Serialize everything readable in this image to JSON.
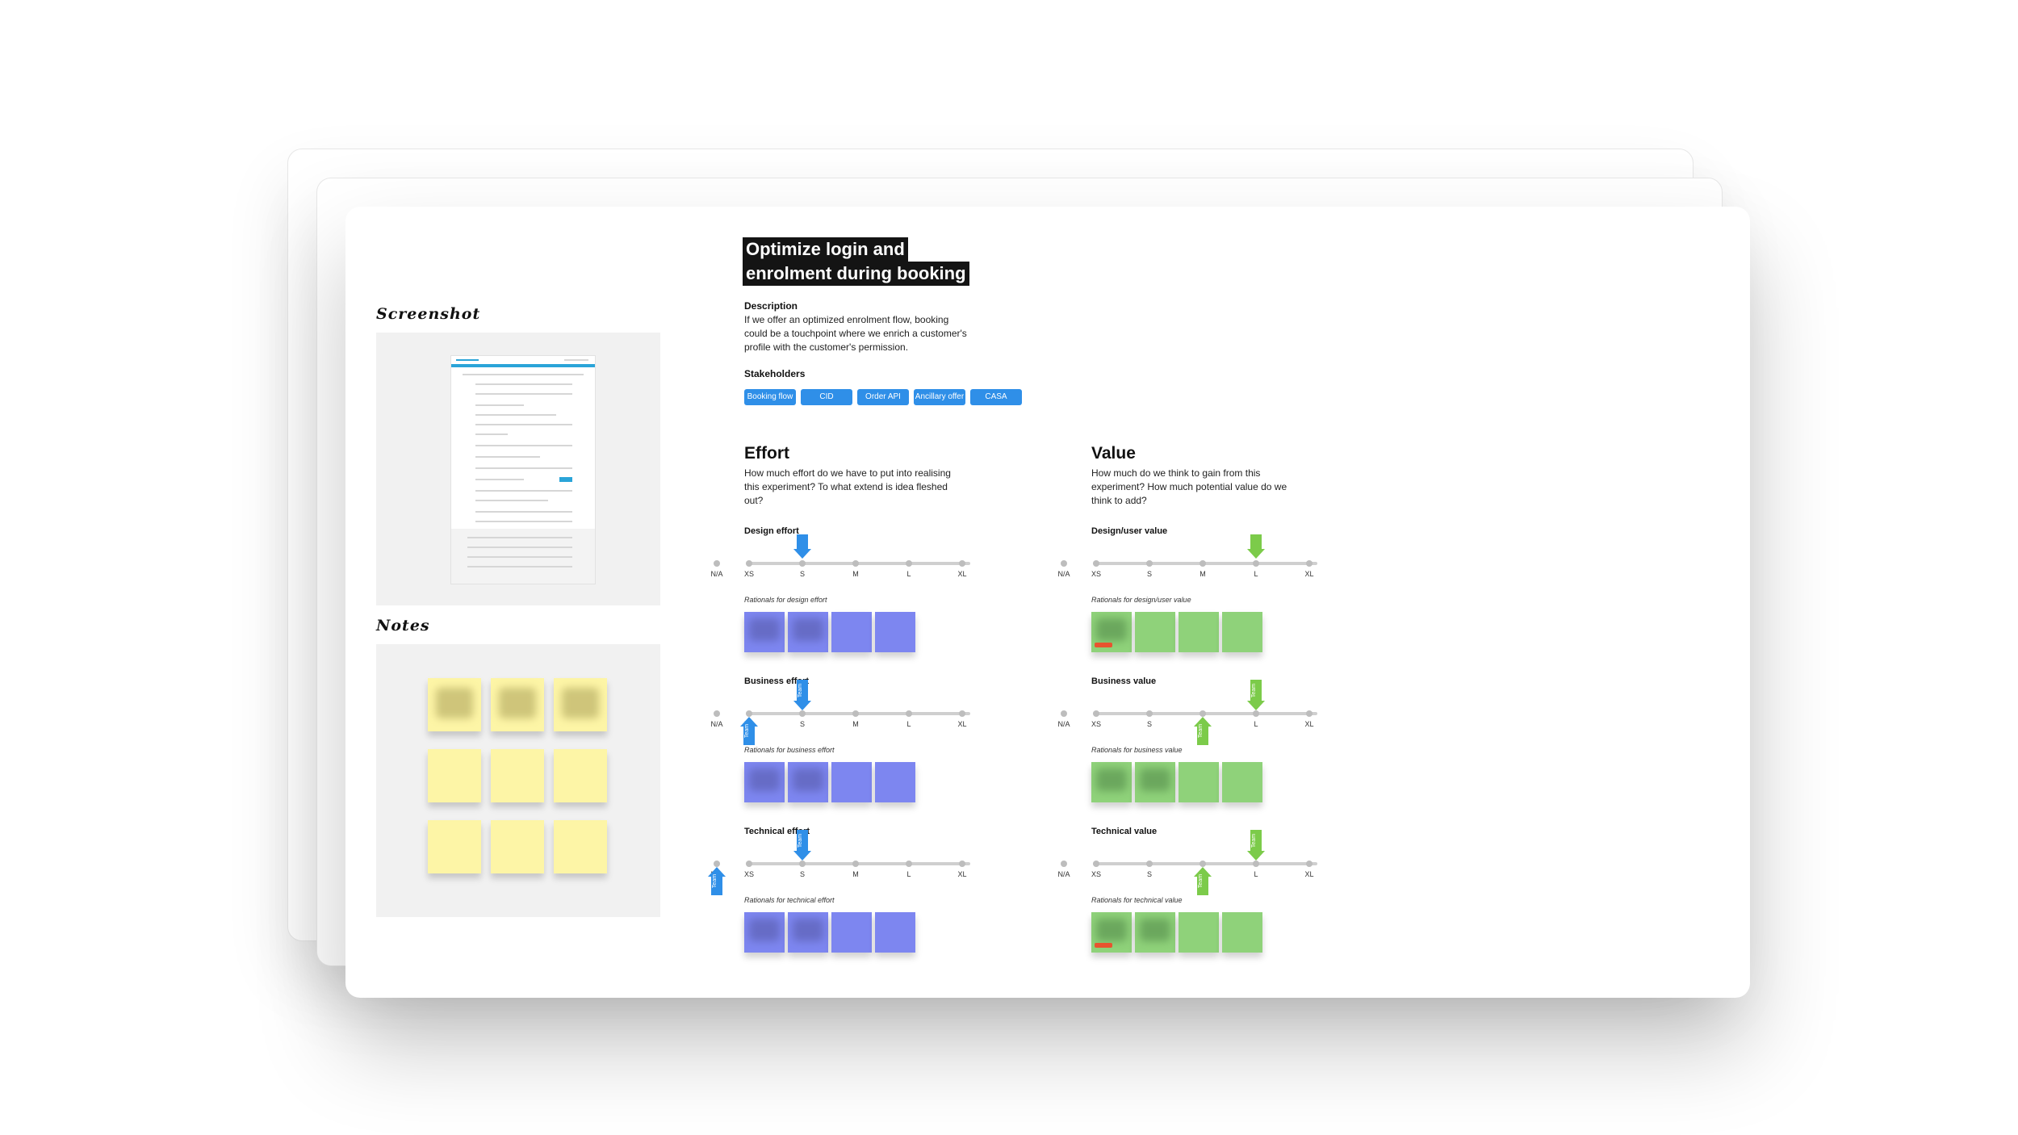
{
  "left_panel": {
    "screenshot_heading": "Screenshot",
    "notes_heading": "Notes"
  },
  "card": {
    "title_line1": "Optimize login and",
    "title_line2": "enrolment during booking",
    "description_label": "Description",
    "description_line1": "If we offer an optimized enrolment flow, booking",
    "description_line2": "could be a touchpoint where we enrich a customer's",
    "description_line3": "profile with the customer's permission.",
    "stakeholders_label": "Stakeholders",
    "stakeholders": [
      "Booking flow",
      "CID",
      "Order API",
      "Ancillary offer",
      "CASA"
    ]
  },
  "effort": {
    "title": "Effort",
    "question_line1": "How much effort do we have to put into realising",
    "question_line2": "this experiment? To what extend is idea fleshed",
    "question_line3": "out?",
    "rows": [
      {
        "label": "Design effort",
        "rationale": "Rationals for design effort",
        "selected": "S"
      },
      {
        "label": "Business effort",
        "rationale": "Rationals for business effort",
        "selected": "S",
        "team_marker": "XS"
      },
      {
        "label": "Technical effort",
        "rationale": "Rationals for technical effort",
        "selected": "S",
        "team_marker": "N/A"
      }
    ]
  },
  "value": {
    "title": "Value",
    "question_line1": "How much do we think to gain from this",
    "question_line2": "experiment? How much potential value do we",
    "question_line3": "think to add?",
    "rows": [
      {
        "label": "Design/user value",
        "rationale": "Rationals for design/user value",
        "selected": "L"
      },
      {
        "label": "Business value",
        "rationale": "Rationals for business value",
        "selected": "L",
        "team_marker": "M"
      },
      {
        "label": "Technical value",
        "rationale": "Rationals for technical value",
        "selected": "L",
        "team_marker": "M"
      }
    ]
  },
  "scale": {
    "na": "N/A",
    "ticks": [
      "XS",
      "S",
      "M",
      "L",
      "XL"
    ]
  },
  "marker_text": "Team",
  "colors": {
    "effort_accent": "#2f8fe8",
    "value_accent": "#7ccb4a",
    "effort_sticky": "#7d86f0",
    "value_sticky": "#8fd27a",
    "note_sticky": "#fdf5a6"
  }
}
